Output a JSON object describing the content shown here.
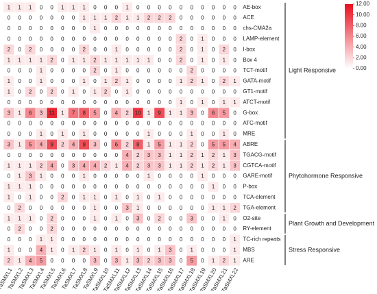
{
  "chart_data": {
    "type": "heatmap",
    "columns": [
      "TaSMXL1",
      "TaSMXL2",
      "TaSMXL3",
      "TaSMXL4",
      "TaSMXL5",
      "TaSMXL6",
      "TaSMXL7",
      "TaSMXL8",
      "TaSMXL9",
      "TaSMXL10",
      "TaSMXL11",
      "TaSMXL12",
      "TaSMXL13",
      "TaSMXL14",
      "TaSMXL15",
      "TaSMXL16",
      "TaSMXL17",
      "TaSMXL18",
      "TaSMXL19",
      "TaSMXL20",
      "TaSMXL21",
      "TaSMXL22"
    ],
    "rows": [
      "AE-box",
      "ACE",
      "chs-CMA2a",
      "LAMP-element",
      "I-box",
      "Box 4",
      "TCT-motif",
      "GATA-motif",
      "GT1-motif",
      "ATCT-motif",
      "G-box",
      "ATC-motif",
      "MRE",
      "ABRE",
      "TGACG-motif",
      "CGTCA-motif",
      "GARE-motif",
      "P-box",
      "TCA-element",
      "TGA-element",
      "O2-site",
      "RY-element",
      "TC-rich repeats",
      "MBS",
      "ARE"
    ],
    "values": [
      [
        1,
        1,
        1,
        0,
        0,
        1,
        1,
        1,
        0,
        0,
        0,
        1,
        0,
        0,
        0,
        0,
        0,
        0,
        0,
        0,
        0,
        0
      ],
      [
        0,
        0,
        0,
        0,
        0,
        0,
        0,
        1,
        1,
        1,
        2,
        1,
        1,
        2,
        2,
        2,
        0,
        0,
        0,
        0,
        0,
        0
      ],
      [
        0,
        0,
        0,
        0,
        0,
        0,
        0,
        0,
        1,
        0,
        0,
        0,
        0,
        0,
        0,
        0,
        0,
        0,
        0,
        0,
        0,
        0
      ],
      [
        0,
        0,
        0,
        0,
        0,
        0,
        0,
        0,
        0,
        0,
        0,
        0,
        0,
        0,
        0,
        0,
        2,
        0,
        1,
        0,
        0,
        0
      ],
      [
        2,
        0,
        2,
        0,
        0,
        0,
        0,
        2,
        0,
        0,
        1,
        0,
        0,
        0,
        0,
        0,
        2,
        0,
        1,
        0,
        2,
        0
      ],
      [
        1,
        1,
        1,
        1,
        2,
        0,
        1,
        1,
        2,
        1,
        1,
        1,
        1,
        1,
        0,
        0,
        2,
        0,
        1,
        0,
        1,
        0
      ],
      [
        0,
        0,
        0,
        1,
        0,
        0,
        0,
        0,
        2,
        0,
        1,
        0,
        0,
        0,
        0,
        0,
        0,
        2,
        0,
        0,
        0,
        0
      ],
      [
        1,
        0,
        0,
        1,
        0,
        0,
        0,
        1,
        0,
        1,
        2,
        1,
        0,
        0,
        0,
        0,
        1,
        2,
        1,
        0,
        2,
        1
      ],
      [
        1,
        0,
        2,
        0,
        2,
        0,
        1,
        0,
        1,
        2,
        0,
        1,
        0,
        0,
        0,
        0,
        0,
        0,
        0,
        0,
        0,
        0
      ],
      [
        0,
        0,
        0,
        0,
        0,
        0,
        0,
        0,
        0,
        0,
        0,
        0,
        0,
        0,
        0,
        0,
        1,
        0,
        1,
        0,
        1,
        1
      ],
      [
        3,
        1,
        6,
        3,
        11,
        1,
        7,
        8,
        5,
        0,
        4,
        2,
        10,
        1,
        9,
        1,
        1,
        3,
        0,
        6,
        5,
        0
      ],
      [
        0,
        0,
        0,
        0,
        0,
        0,
        0,
        0,
        0,
        0,
        0,
        0,
        0,
        0,
        0,
        0,
        0,
        0,
        0,
        0,
        0,
        0
      ],
      [
        0,
        0,
        0,
        1,
        0,
        1,
        0,
        1,
        0,
        0,
        0,
        0,
        0,
        1,
        0,
        0,
        0,
        1,
        0,
        0,
        1,
        0
      ],
      [
        3,
        1,
        5,
        4,
        9,
        2,
        4,
        9,
        3,
        0,
        6,
        2,
        8,
        1,
        5,
        1,
        1,
        2,
        0,
        5,
        5,
        4
      ],
      [
        0,
        0,
        0,
        0,
        0,
        0,
        0,
        0,
        0,
        0,
        0,
        4,
        2,
        3,
        3,
        1,
        1,
        2,
        1,
        2,
        1,
        3
      ],
      [
        1,
        1,
        1,
        2,
        4,
        0,
        3,
        4,
        4,
        2,
        1,
        4,
        2,
        3,
        3,
        1,
        1,
        2,
        1,
        2,
        1,
        3
      ],
      [
        0,
        1,
        3,
        1,
        0,
        0,
        0,
        1,
        0,
        0,
        0,
        0,
        0,
        1,
        0,
        0,
        0,
        0,
        1,
        0,
        0,
        0
      ],
      [
        1,
        1,
        1,
        0,
        0,
        0,
        0,
        0,
        0,
        0,
        0,
        0,
        0,
        0,
        0,
        0,
        0,
        0,
        0,
        1,
        0,
        0
      ],
      [
        1,
        0,
        1,
        0,
        0,
        2,
        0,
        1,
        1,
        0,
        1,
        0,
        1,
        0,
        1,
        0,
        0,
        0,
        0,
        0,
        0,
        0
      ],
      [
        0,
        2,
        0,
        0,
        0,
        0,
        0,
        0,
        1,
        0,
        0,
        3,
        1,
        0,
        0,
        0,
        0,
        0,
        0,
        1,
        1,
        2
      ],
      [
        1,
        1,
        1,
        0,
        2,
        0,
        0,
        0,
        1,
        0,
        1,
        0,
        3,
        0,
        2,
        0,
        0,
        3,
        0,
        0,
        1,
        0
      ],
      [
        0,
        2,
        0,
        0,
        2,
        0,
        0,
        0,
        0,
        0,
        0,
        0,
        0,
        0,
        0,
        0,
        0,
        0,
        0,
        0,
        0,
        0
      ],
      [
        0,
        0,
        0,
        1,
        1,
        0,
        0,
        0,
        0,
        0,
        0,
        0,
        0,
        0,
        0,
        0,
        0,
        0,
        0,
        0,
        0,
        1
      ],
      [
        1,
        0,
        0,
        4,
        1,
        0,
        1,
        2,
        1,
        0,
        1,
        0,
        1,
        0,
        1,
        3,
        0,
        1,
        0,
        0,
        0,
        1
      ],
      [
        2,
        1,
        4,
        5,
        0,
        0,
        0,
        0,
        3,
        0,
        3,
        1,
        3,
        2,
        3,
        3,
        0,
        5,
        0,
        1,
        2,
        1
      ]
    ],
    "colormap": [
      "#ffffff",
      "#e8101e"
    ],
    "clim": [
      0,
      12
    ],
    "cticks": [
      {
        "value": 0,
        "label": "0.00"
      },
      {
        "value": 2,
        "label": "2.00"
      },
      {
        "value": 4,
        "label": "4.00"
      },
      {
        "value": 6,
        "label": "6.00"
      },
      {
        "value": 8,
        "label": "8.00"
      },
      {
        "value": 10,
        "label": "10.00"
      },
      {
        "value": 12,
        "label": "12.00"
      }
    ],
    "groups": [
      {
        "label": "Light Responsive",
        "rows": [
          0,
          12
        ]
      },
      {
        "label": "Phytohormone Responsive",
        "rows": [
          13,
          19
        ]
      },
      {
        "label": "Plant Growth and Development",
        "rows": [
          20,
          21
        ]
      },
      {
        "label": "Stress Responsive",
        "rows": [
          22,
          24
        ]
      }
    ]
  }
}
